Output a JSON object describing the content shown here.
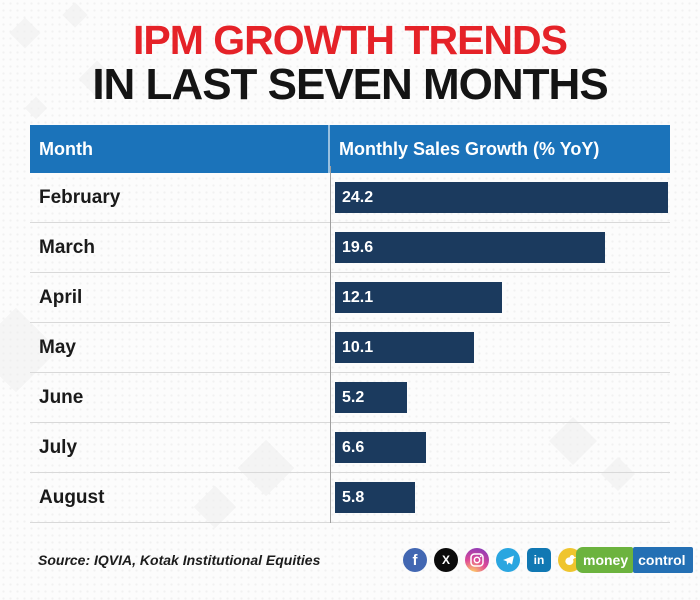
{
  "title": {
    "line1": "IPM GROWTH TRENDS",
    "line2": "IN LAST SEVEN MONTHS"
  },
  "table": {
    "headers": [
      "Month",
      "Monthly Sales Growth (% YoY)"
    ]
  },
  "chart_data": {
    "type": "bar",
    "orientation": "horizontal",
    "title": "IPM GROWTH TRENDS IN LAST SEVEN MONTHS",
    "categories": [
      "February",
      "March",
      "April",
      "May",
      "June",
      "July",
      "August"
    ],
    "values": [
      24.2,
      19.6,
      12.1,
      10.1,
      5.2,
      6.6,
      5.8
    ],
    "xlabel": "Monthly Sales Growth (% YoY)",
    "ylabel": "Month",
    "xlim": [
      0,
      24.2
    ],
    "grid": false,
    "value_labels_shown": true,
    "bar_color": "#1b3a5e"
  },
  "footer": {
    "source": "Source: IQVIA, Kotak Institutional Equities",
    "social_icons": [
      "facebook-icon",
      "x-icon",
      "instagram-icon",
      "telegram-icon",
      "linkedin-icon",
      "koo-icon"
    ],
    "icon_glyphs": {
      "facebook": "f",
      "x": "X",
      "linkedin": "in"
    },
    "brand": {
      "part1": "money",
      "part2": "control"
    }
  },
  "colors": {
    "header_blue": "#1b73ba",
    "bar_navy": "#1b3a5e",
    "title_red": "#e52228",
    "title_black": "#141414",
    "brand_green": "#6cb33e",
    "brand_blue": "#2470b4"
  }
}
